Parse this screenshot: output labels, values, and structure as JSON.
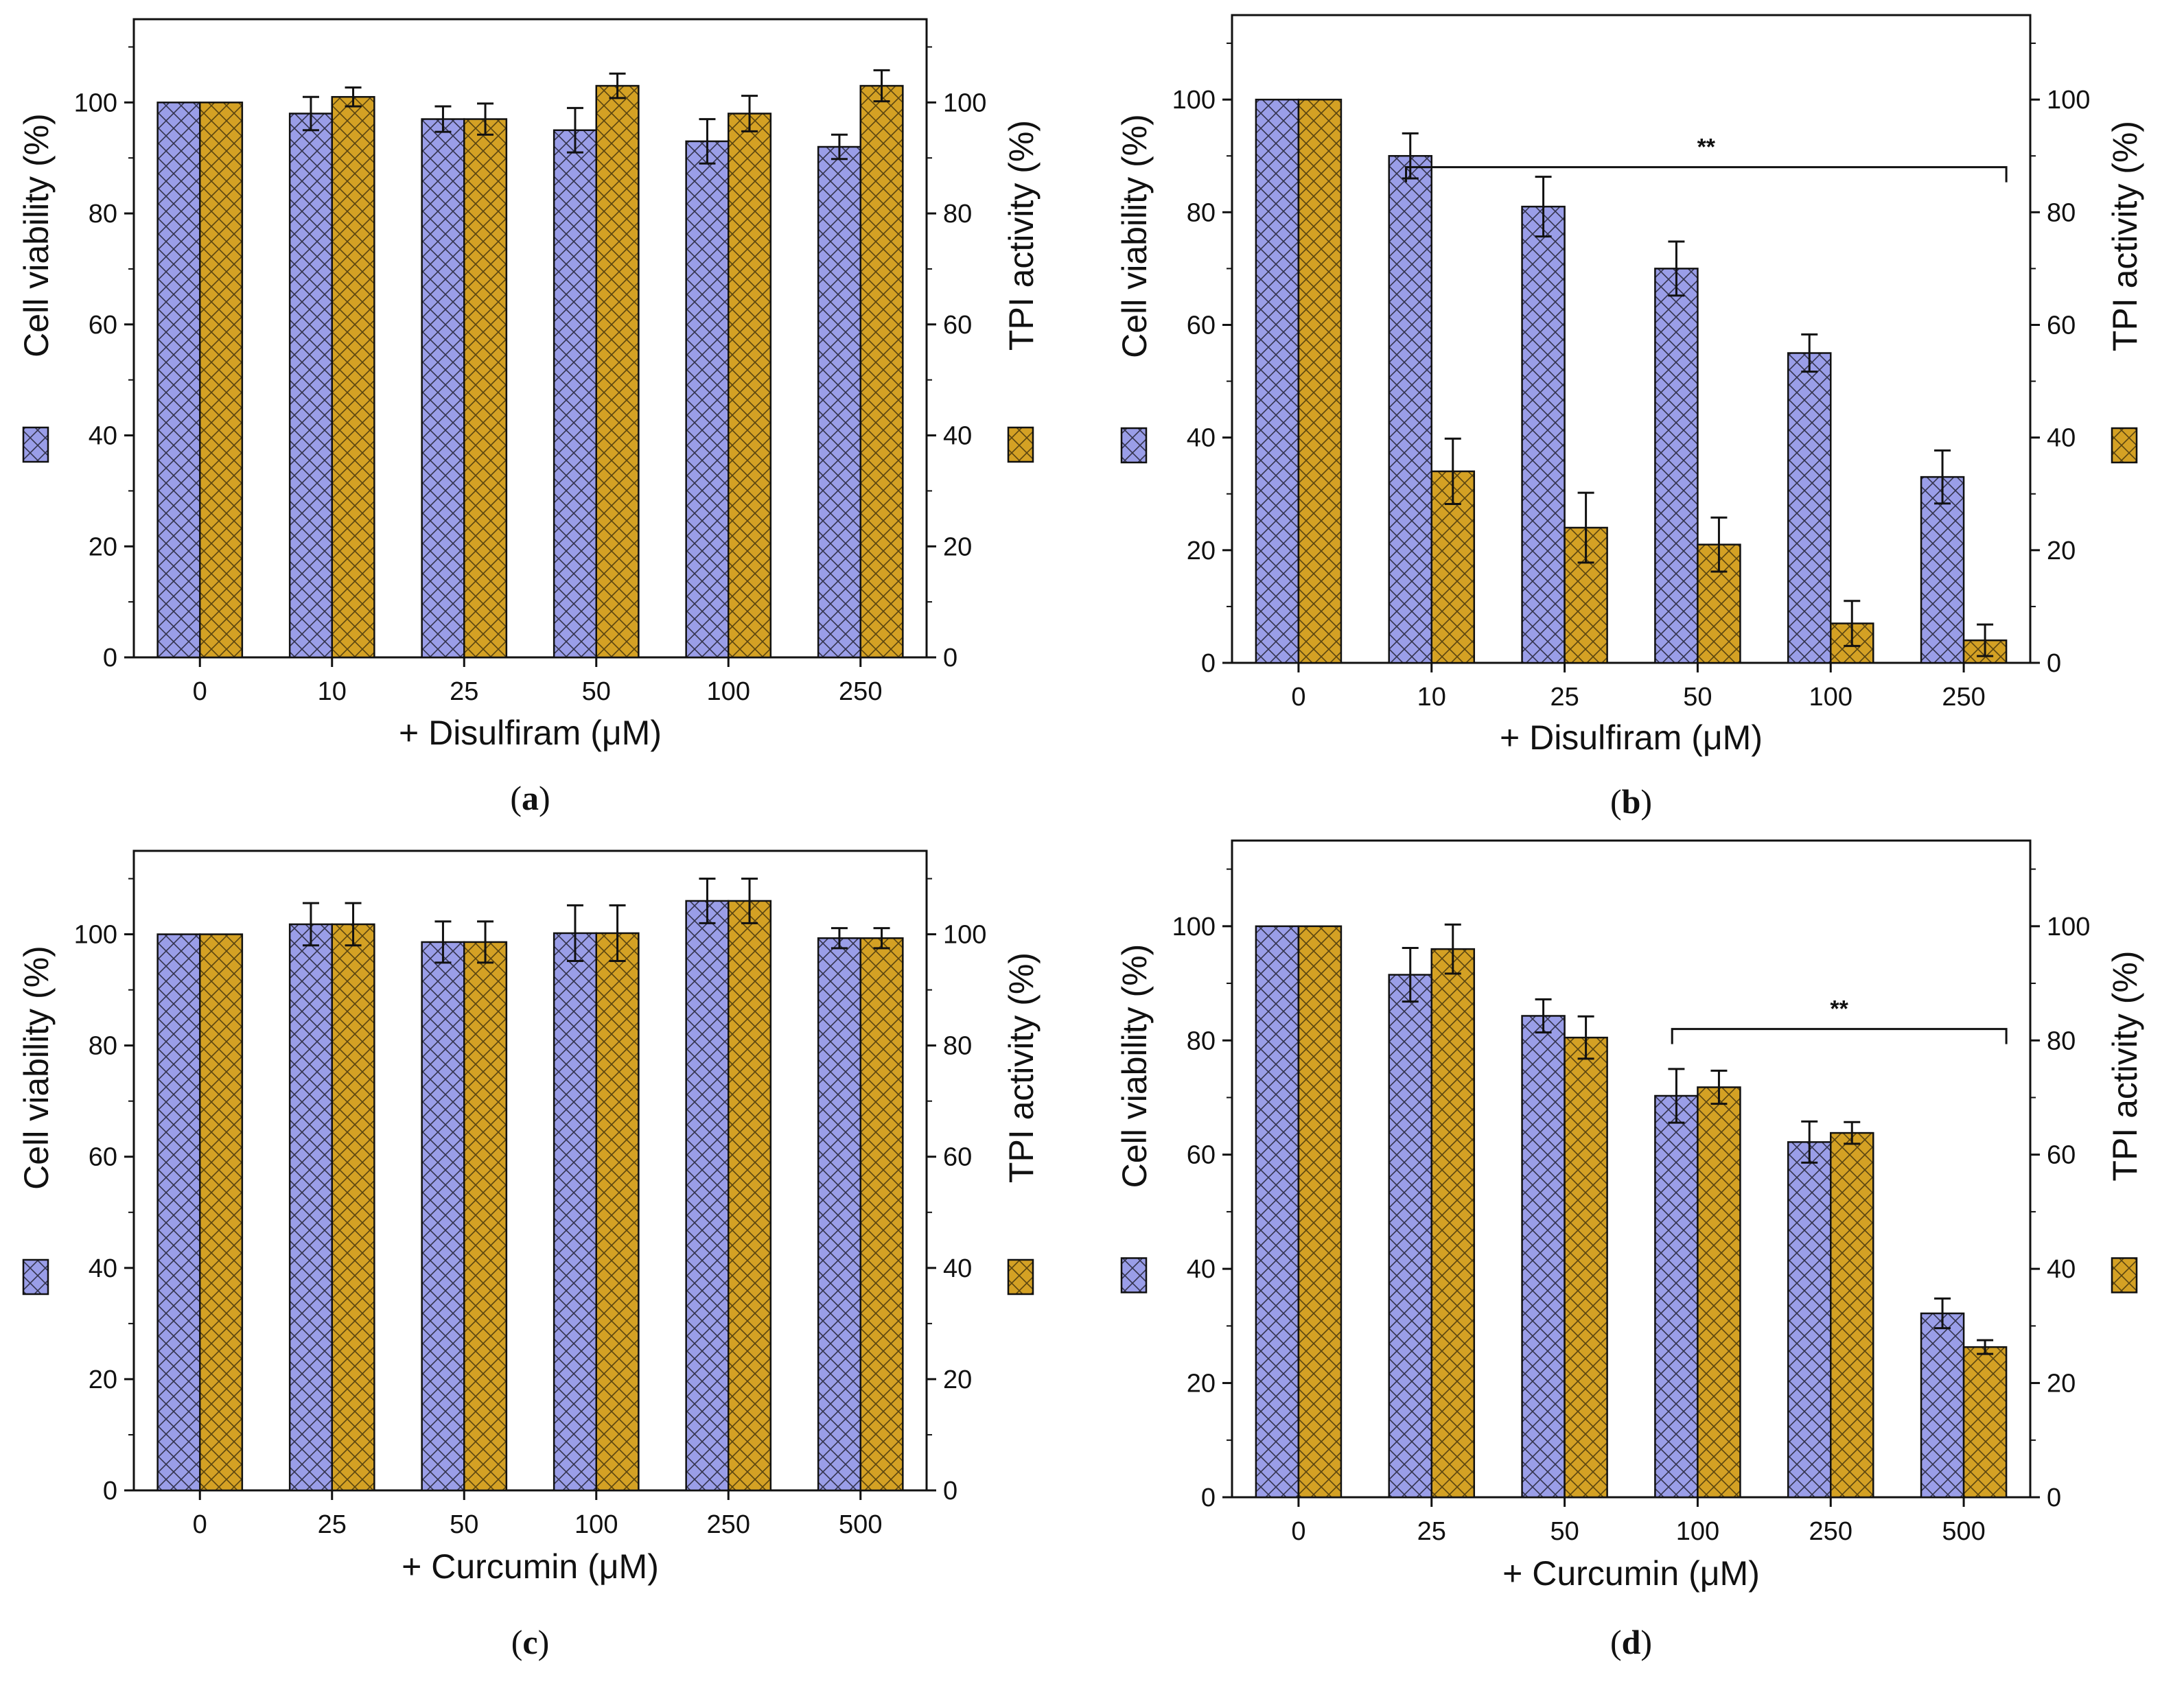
{
  "colors": {
    "cell": "#9a9ee8",
    "tpi": "#d4a124",
    "frame": "#111111",
    "hatch": "#33334d",
    "hatch2": "#5a4510"
  },
  "chart_data": [
    {
      "type": "bar",
      "panel_label": "a",
      "categories": [
        "0",
        "10",
        "25",
        "50",
        "100",
        "250"
      ],
      "series": [
        {
          "name": "Cell viability",
          "values": [
            100,
            98,
            97,
            95,
            93,
            92
          ],
          "errors": [
            0,
            3,
            2.3,
            4,
            4,
            2.2
          ]
        },
        {
          "name": "TPI activity",
          "values": [
            100,
            101,
            97,
            103,
            98,
            103
          ],
          "errors": [
            0,
            1.7,
            2.8,
            2.2,
            3.2,
            2.8
          ]
        }
      ],
      "xlabel": "+ Disulfiram (μM)",
      "ylabel_left": "Cell viability (%)",
      "ylabel_right": "TPI activity (%)",
      "ylim": [
        0,
        115
      ],
      "yticks": [
        "0",
        "20",
        "40",
        "60",
        "80",
        "100"
      ],
      "significance": null
    },
    {
      "type": "bar",
      "panel_label": "b",
      "categories": [
        "0",
        "10",
        "25",
        "50",
        "100",
        "250"
      ],
      "series": [
        {
          "name": "Cell viability",
          "values": [
            100,
            90,
            81,
            70,
            55,
            33
          ],
          "errors": [
            0,
            4,
            5.3,
            4.8,
            3.3,
            4.7
          ]
        },
        {
          "name": "TPI activity",
          "values": [
            100,
            34,
            24,
            21,
            7,
            4
          ],
          "errors": [
            0,
            5.8,
            6.2,
            4.8,
            4,
            2.8
          ]
        }
      ],
      "xlabel": "+ Disulfiram (μM)",
      "ylabel_left": "Cell viability (%)",
      "ylabel_right": "TPI activity (%)",
      "ylim": [
        0,
        115
      ],
      "yticks": [
        "0",
        "20",
        "40",
        "60",
        "80",
        "100"
      ],
      "significance": {
        "label": "**",
        "from": "10",
        "to": "250",
        "y": 88
      }
    },
    {
      "type": "bar",
      "panel_label": "c",
      "categories": [
        "0",
        "25",
        "50",
        "100",
        "250",
        "500"
      ],
      "series": [
        {
          "name": "Cell viability",
          "values": [
            100,
            101.8,
            98.6,
            100.2,
            106,
            99.3
          ],
          "errors": [
            0,
            3.8,
            3.7,
            5,
            4,
            1.8
          ]
        },
        {
          "name": "TPI activity",
          "values": [
            100,
            101.8,
            98.6,
            100.2,
            106,
            99.3
          ],
          "errors": [
            0,
            3.8,
            3.7,
            5,
            4,
            1.8
          ]
        }
      ],
      "xlabel": "+ Curcumin (μM)",
      "ylabel_left": "Cell viability (%)",
      "ylabel_right": "TPI activity (%)",
      "ylim": [
        0,
        115
      ],
      "yticks": [
        "0",
        "20",
        "40",
        "60",
        "80",
        "100"
      ],
      "significance": null
    },
    {
      "type": "bar",
      "panel_label": "d",
      "categories": [
        "0",
        "25",
        "50",
        "100",
        "250",
        "500"
      ],
      "series": [
        {
          "name": "Cell viability",
          "values": [
            100,
            91.5,
            84.3,
            70.3,
            62.2,
            32.2
          ],
          "errors": [
            0,
            4.7,
            2.9,
            4.7,
            3.6,
            2.6
          ]
        },
        {
          "name": "TPI activity",
          "values": [
            100,
            96,
            80.5,
            71.8,
            63.8,
            26.3
          ],
          "errors": [
            0,
            4.3,
            3.7,
            2.9,
            1.9,
            1.2
          ]
        }
      ],
      "xlabel": "+ Curcumin (μM)",
      "ylabel_left": "Cell viability (%)",
      "ylabel_right": "TPI activity (%)",
      "ylim": [
        0,
        115
      ],
      "yticks": [
        "0",
        "20",
        "40",
        "60",
        "80",
        "100"
      ],
      "significance": {
        "label": "**",
        "from": "100",
        "to": "500",
        "y": 82
      }
    }
  ]
}
